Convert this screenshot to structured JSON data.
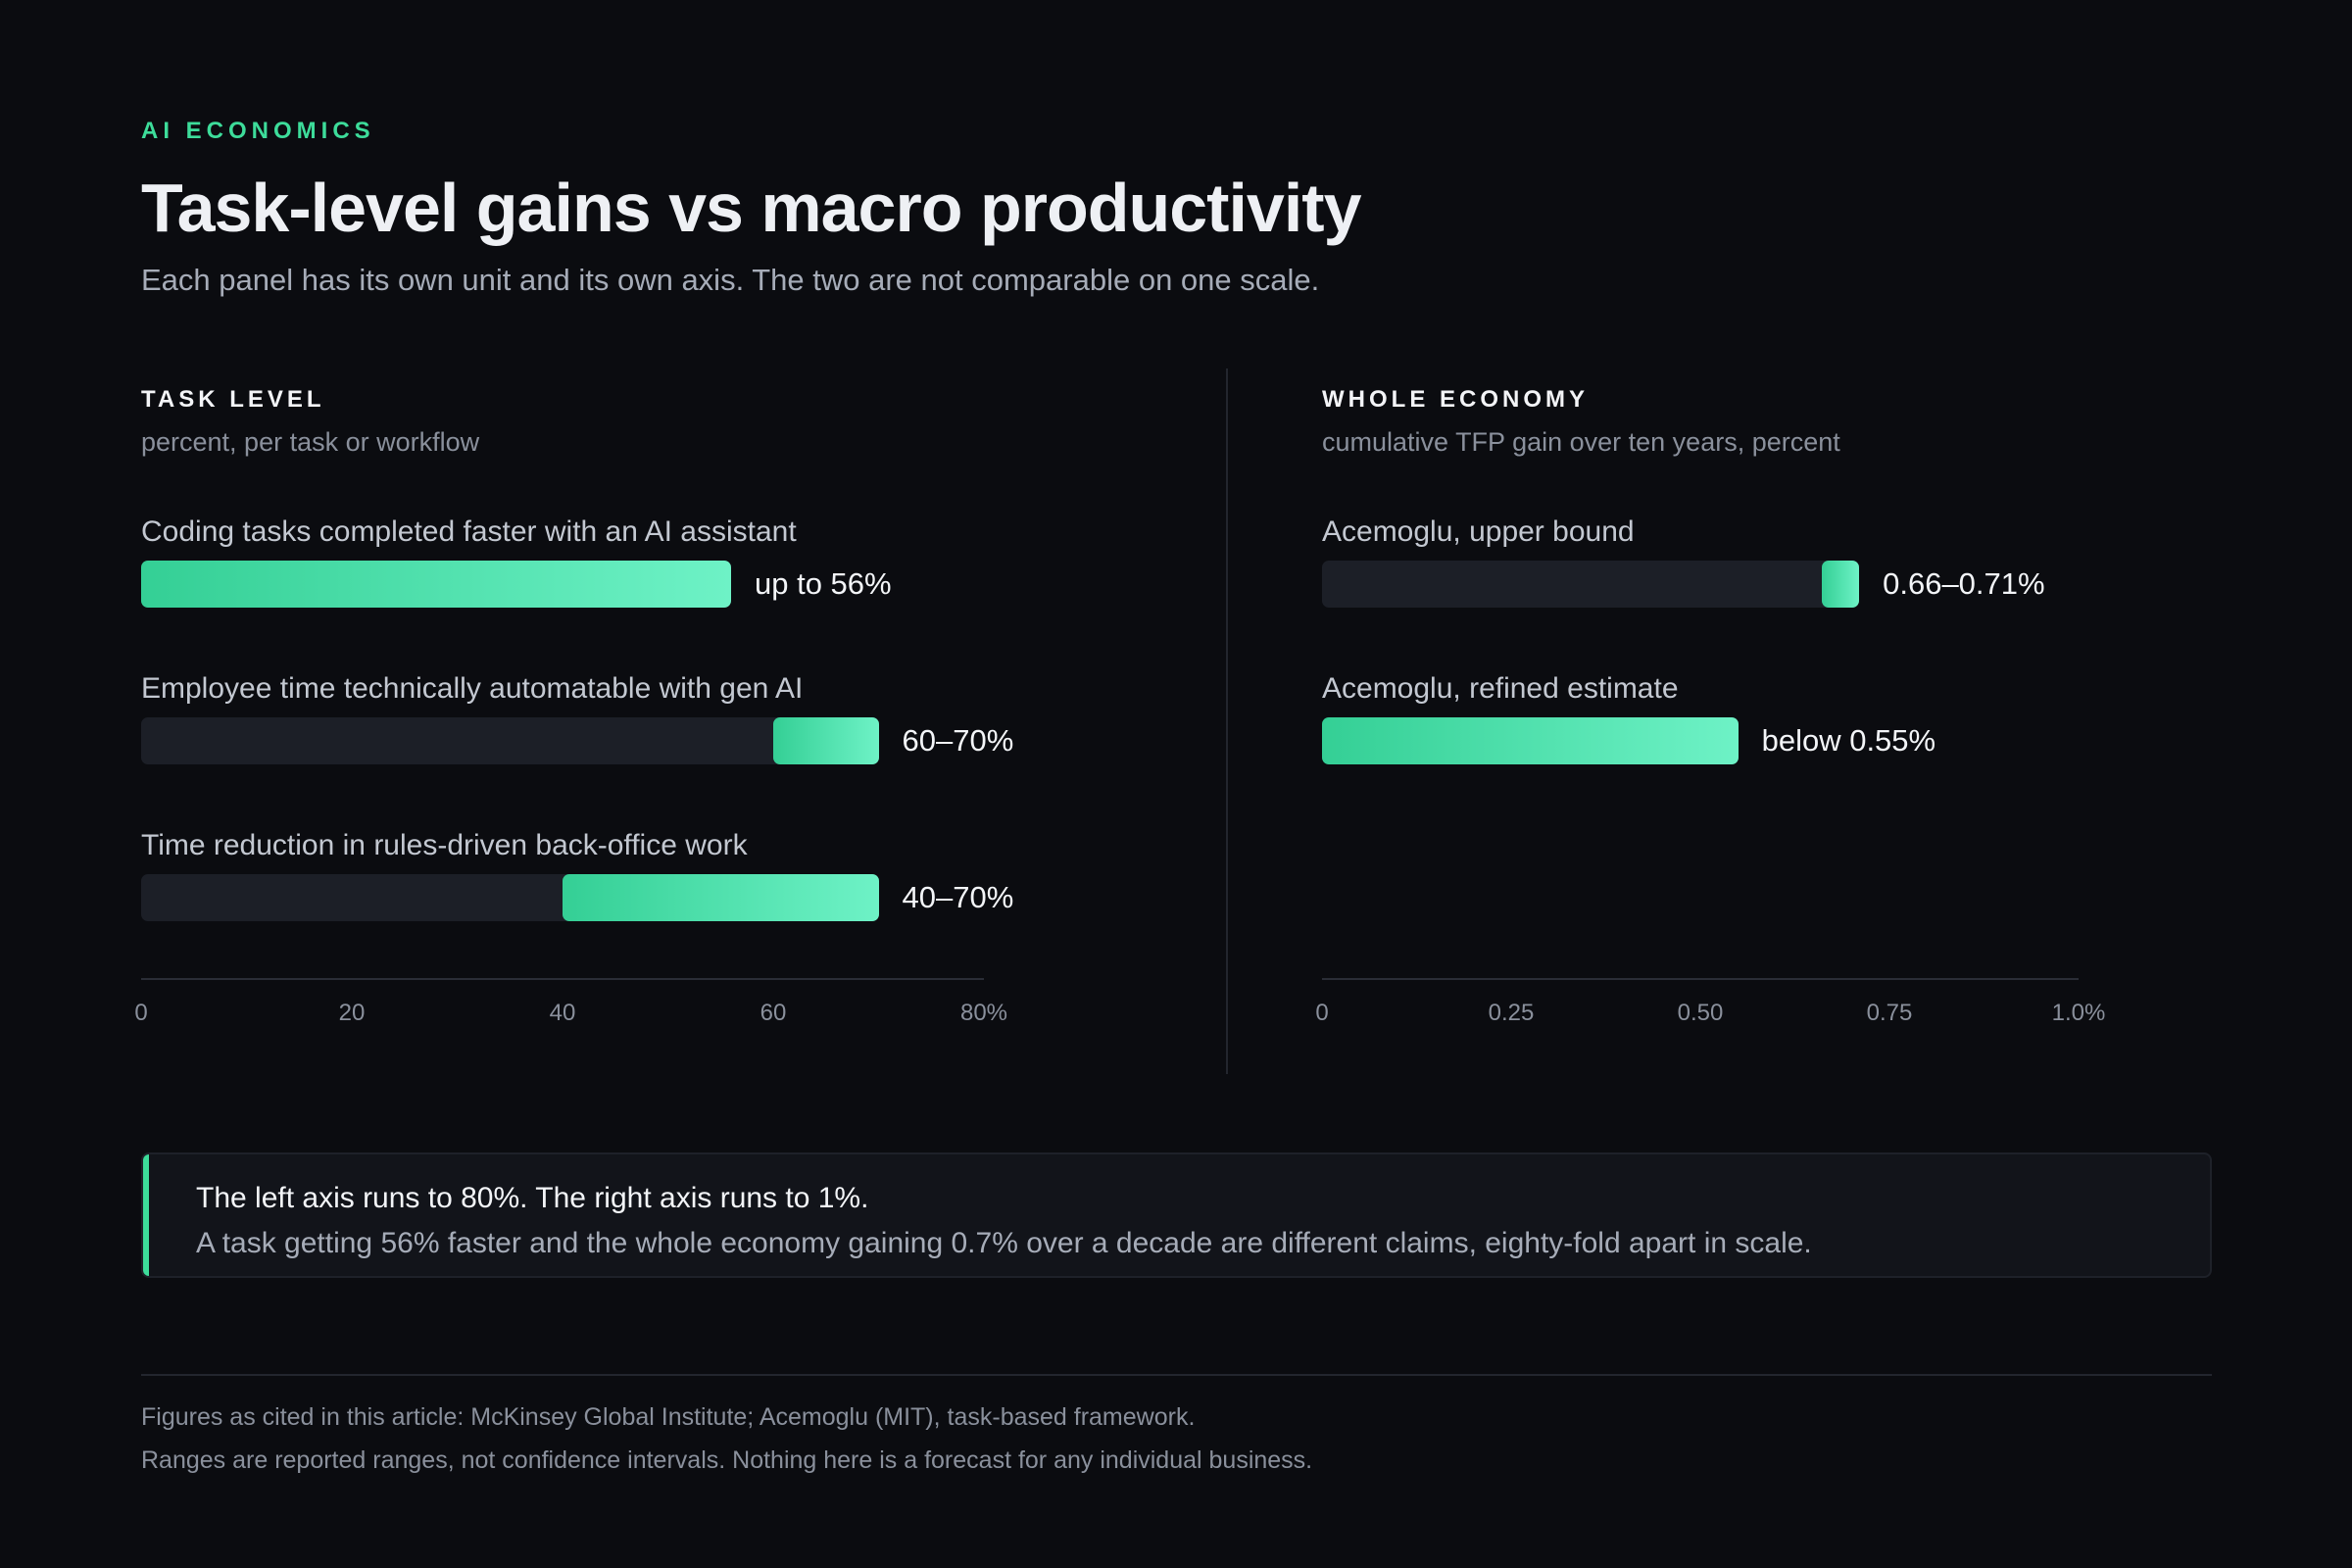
{
  "header": {
    "eyebrow": "AI ECONOMICS",
    "title": "Task-level gains vs macro productivity",
    "subtitle": "Each panel has its own unit and its own axis. The two are not comparable on one scale."
  },
  "colors": {
    "accent": "#3ddc9a",
    "bar_start": "#34cf95",
    "bar_end": "#6ef2c6",
    "track": "#1c1f27",
    "background": "#0b0c10"
  },
  "chart_data": [
    {
      "type": "bar",
      "orientation": "horizontal",
      "title": "TASK LEVEL",
      "unit": "percent, per task or workflow",
      "xlim": [
        0,
        80
      ],
      "ticks": [
        "0",
        "20",
        "40",
        "60",
        "80%"
      ],
      "tick_values": [
        0,
        20,
        40,
        60,
        80
      ],
      "rows": [
        {
          "label": "Coding tasks completed faster with an AI assistant",
          "low": 0,
          "high": 56,
          "display": "up to 56%",
          "range": false
        },
        {
          "label": "Employee time technically automatable with gen AI",
          "low": 60,
          "high": 70,
          "display": "60–70%",
          "range": true
        },
        {
          "label": "Time reduction in rules-driven back-office work",
          "low": 40,
          "high": 70,
          "display": "40–70%",
          "range": true
        }
      ]
    },
    {
      "type": "bar",
      "orientation": "horizontal",
      "title": "WHOLE ECONOMY",
      "unit": "cumulative TFP gain over ten years, percent",
      "xlim": [
        0,
        1.0
      ],
      "ticks": [
        "0",
        "0.25",
        "0.50",
        "0.75",
        "1.0%"
      ],
      "tick_values": [
        0,
        0.25,
        0.5,
        0.75,
        1.0
      ],
      "rows": [
        {
          "label": "Acemoglu, upper bound",
          "low": 0.66,
          "high": 0.71,
          "display": "0.66–0.71%",
          "range": true
        },
        {
          "label": "Acemoglu, refined estimate",
          "low": 0,
          "high": 0.55,
          "display": "below 0.55%",
          "range": false
        }
      ]
    }
  ],
  "callout": {
    "title": "The left axis runs to 80%. The right axis runs to 1%.",
    "body": "A task getting 56% faster and the whole economy gaining 0.7% over a decade are different claims, eighty-fold apart in scale."
  },
  "footer": {
    "line1": "Figures as cited in this article: McKinsey Global Institute; Acemoglu (MIT), task-based framework.",
    "line2": "Ranges are reported ranges, not confidence intervals. Nothing here is a forecast for any individual business."
  }
}
